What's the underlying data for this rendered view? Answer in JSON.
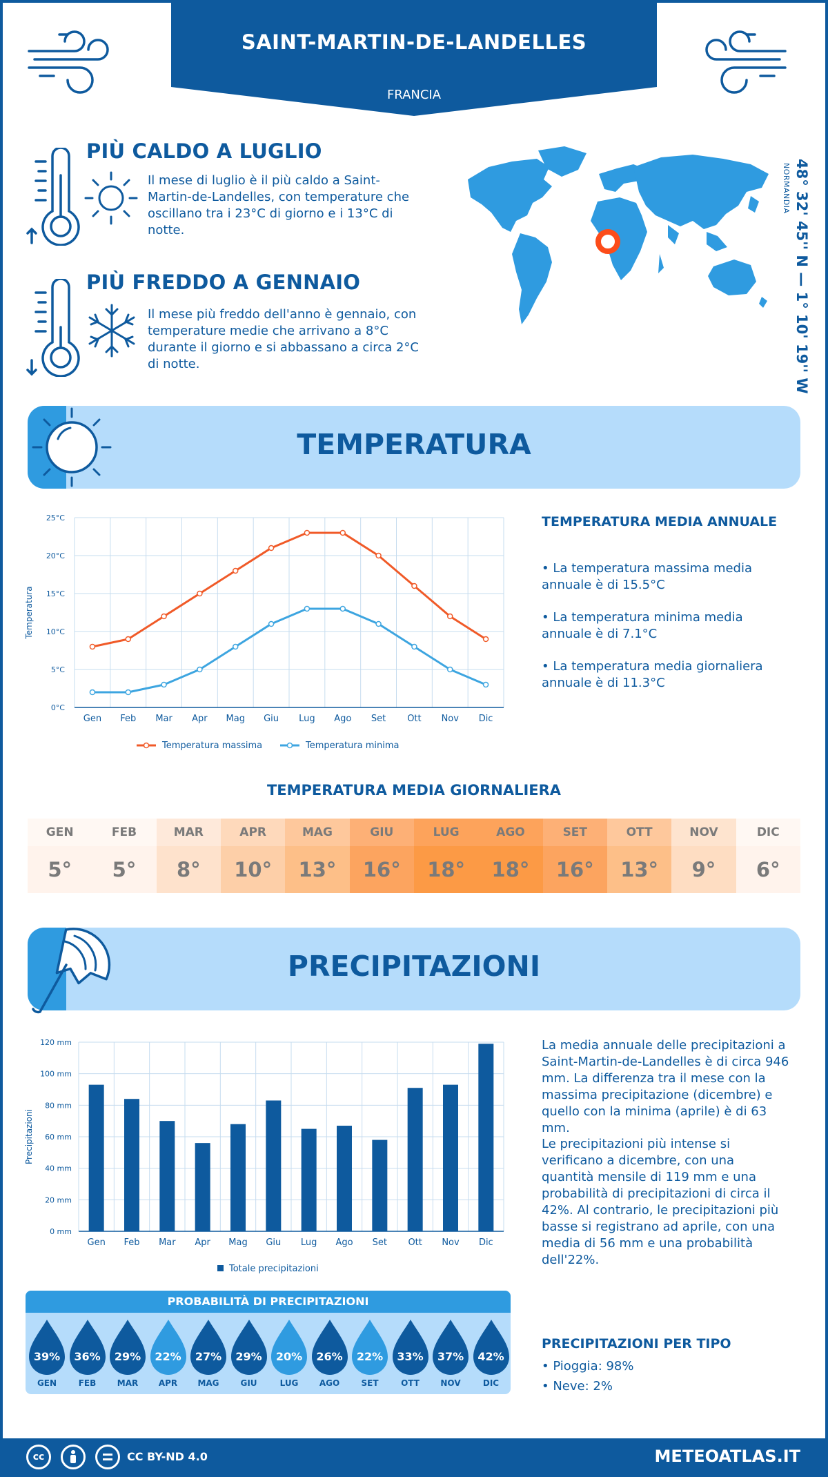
{
  "header": {
    "city": "SAINT-MARTIN-DE-LANDELLES",
    "country": "FRANCIA"
  },
  "icons": {
    "wind_left": "wind-icon",
    "wind_right": "wind-icon",
    "thermometer_hot": "thermometer-icon",
    "sun": "sun-icon",
    "thermometer_cold": "thermometer-icon",
    "snowflake": "snowflake-icon",
    "sun_section": "sun-icon",
    "umbrella_section": "umbrella-icon",
    "world_map": "world-map-icon",
    "location_marker": "location-marker-icon"
  },
  "hottest": {
    "title": "PIÙ CALDO A LUGLIO",
    "text": "Il mese di luglio è il più caldo a Saint-Martin-de-Landelles, con temperature che oscillano tra i 23°C di giorno e i 13°C di notte."
  },
  "coldest": {
    "title": "PIÙ FREDDO A GENNAIO",
    "text": "Il mese più freddo dell'anno è gennaio, con temperature medie che arrivano a 8°C durante il giorno e si abbassano a circa 2°C di notte."
  },
  "location": {
    "coords": "48° 32' 45'' N — 1° 10' 19'' W",
    "region": "NORMANDIA"
  },
  "temperature_section": {
    "title": "TEMPERATURA"
  },
  "temperature_summary": {
    "heading": "TEMPERATURA MEDIA ANNUALE",
    "max": "• La temperatura massima media annuale è di 15.5°C",
    "min": "• La temperatura minima media annuale è di 7.1°C",
    "avg": "• La temperatura media giornaliera annuale è di 11.3°C"
  },
  "daily": {
    "title": "TEMPERATURA MEDIA GIORNALIERA",
    "months": [
      "GEN",
      "FEB",
      "MAR",
      "APR",
      "MAG",
      "GIU",
      "LUG",
      "AGO",
      "SET",
      "OTT",
      "NOV",
      "DIC"
    ],
    "values": [
      "5°",
      "5°",
      "8°",
      "10°",
      "13°",
      "16°",
      "18°",
      "18°",
      "16°",
      "13°",
      "9°",
      "6°"
    ],
    "header_colors": [
      "#fff8f3",
      "#fff8f3",
      "#fee9da",
      "#fed9bb",
      "#fec89c",
      "#fdb076",
      "#fda35b",
      "#fda35b",
      "#fdb076",
      "#fec89c",
      "#fee4cf",
      "#fff8f3"
    ],
    "value_colors": [
      "#fff3ec",
      "#fff3ec",
      "#fee2cc",
      "#fdcfa8",
      "#fdbf88",
      "#fca45f",
      "#fc9a45",
      "#fc9a45",
      "#fca45f",
      "#fdbf88",
      "#feddc2",
      "#fff3ec"
    ]
  },
  "precip_section": {
    "title": "PRECIPITAZIONI"
  },
  "precip_summary": {
    "p1": "La media annuale delle precipitazioni a Saint-Martin-de-Landelles è di circa 946 mm. La differenza tra il mese con la massima precipitazione (dicembre) e quello con la minima (aprile) è di 63 mm.",
    "p2": "Le precipitazioni più intense si verificano a dicembre, con una quantità mensile di 119 mm e una probabilità di precipitazioni di circa il 42%. Al contrario, le precipitazioni più basse si registrano ad aprile, con una media di 56 mm e una probabilità dell'22%."
  },
  "probability": {
    "title": "PROBABILITÀ DI PRECIPITAZIONI",
    "months": [
      "GEN",
      "FEB",
      "MAR",
      "APR",
      "MAG",
      "GIU",
      "LUG",
      "AGO",
      "SET",
      "OTT",
      "NOV",
      "DIC"
    ],
    "values": [
      "39%",
      "36%",
      "29%",
      "22%",
      "27%",
      "29%",
      "20%",
      "26%",
      "22%",
      "33%",
      "37%",
      "42%"
    ],
    "colors": [
      "#0e5a9e",
      "#0e5a9e",
      "#0e5a9e",
      "#2f9be0",
      "#0e5a9e",
      "#0e5a9e",
      "#2f9be0",
      "#0e5a9e",
      "#2f9be0",
      "#0e5a9e",
      "#0e5a9e",
      "#0e5a9e"
    ]
  },
  "precip_type": {
    "heading": "PRECIPITAZIONI PER TIPO",
    "rain": "• Pioggia: 98%",
    "snow": "• Neve: 2%"
  },
  "footer": {
    "license": "CC BY-ND 4.0",
    "site": "METEOATLAS.IT",
    "cc_icons": [
      "cc-icon",
      "by-icon",
      "nd-icon"
    ]
  },
  "colors": {
    "primary": "#0e5a9e",
    "accent": "#2f9be0",
    "light": "#b5dcfb",
    "temp_max": "#f05a28",
    "temp_min": "#3da5e0"
  },
  "chart_data": [
    {
      "type": "line",
      "title": "",
      "ylabel": "Temperatura",
      "xlabel": "",
      "x": [
        "Gen",
        "Feb",
        "Mar",
        "Apr",
        "Mag",
        "Giu",
        "Lug",
        "Ago",
        "Set",
        "Ott",
        "Nov",
        "Dic"
      ],
      "ylim": [
        0,
        25
      ],
      "yticks": [
        "0°C",
        "5°C",
        "10°C",
        "15°C",
        "20°C",
        "25°C"
      ],
      "grid": true,
      "legend": "bottom",
      "series": [
        {
          "name": "Temperatura massima",
          "color": "#f05a28",
          "values": [
            8,
            9,
            12,
            15,
            18,
            21,
            23,
            23,
            20,
            16,
            12,
            9
          ]
        },
        {
          "name": "Temperatura minima",
          "color": "#3da5e0",
          "values": [
            2,
            2,
            3,
            5,
            8,
            11,
            13,
            13,
            11,
            8,
            5,
            3
          ]
        }
      ]
    },
    {
      "type": "bar",
      "title": "",
      "ylabel": "Precipitazioni",
      "xlabel": "",
      "categories": [
        "Gen",
        "Feb",
        "Mar",
        "Apr",
        "Mag",
        "Giu",
        "Lug",
        "Ago",
        "Set",
        "Ott",
        "Nov",
        "Dic"
      ],
      "ylim": [
        0,
        120
      ],
      "yticks": [
        "0 mm",
        "20 mm",
        "40 mm",
        "60 mm",
        "80 mm",
        "100 mm",
        "120 mm"
      ],
      "grid": true,
      "legend": "bottom",
      "series": [
        {
          "name": "Totale precipitazioni",
          "color": "#0e5a9e",
          "values": [
            93,
            84,
            70,
            56,
            68,
            83,
            65,
            67,
            58,
            91,
            93,
            119
          ]
        }
      ]
    }
  ]
}
